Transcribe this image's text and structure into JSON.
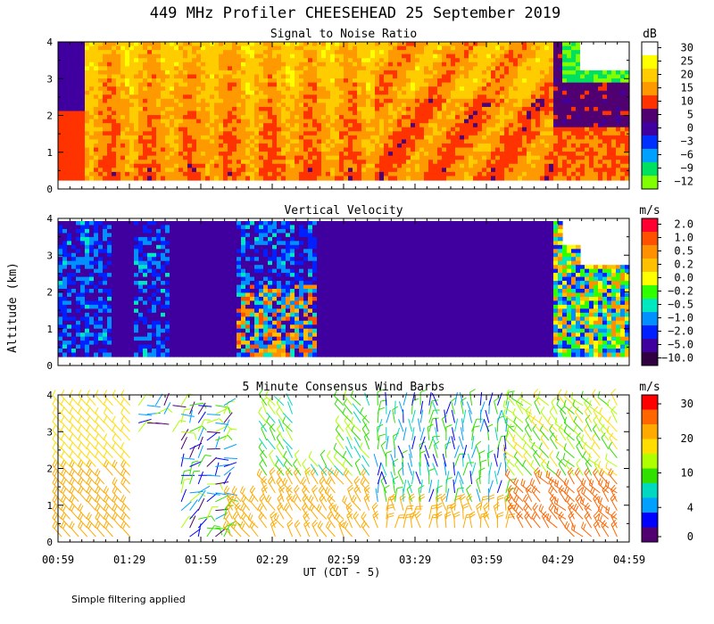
{
  "title": "449 MHz Profiler CHEESEHEAD 25 September 2019",
  "footer_note": "Simple filtering applied",
  "x_axis": {
    "label": "UT (CDT - 5)",
    "ticks": [
      "00:59",
      "01:29",
      "01:59",
      "02:29",
      "02:59",
      "03:29",
      "03:59",
      "04:29",
      "04:59"
    ]
  },
  "y_axis": {
    "label": "Altitude (km)",
    "ticks": [
      "0",
      "1",
      "2",
      "3",
      "4"
    ]
  },
  "chart_data": [
    {
      "type": "heatmap",
      "title": "Signal to Noise Ratio",
      "unit": "dB",
      "ylim": [
        0,
        4
      ],
      "colorbar_ticks": [
        "30",
        "25",
        "20",
        "15",
        "10",
        "5",
        "0",
        "−3",
        "−6",
        "−9",
        "−12"
      ],
      "colors": [
        "#ffffff",
        "#ffff00",
        "#ffcc00",
        "#ff9900",
        "#ff3300",
        "#500070",
        "#4000a0",
        "#0030ff",
        "#00a0ff",
        "#00e060",
        "#80ff00"
      ]
    },
    {
      "type": "heatmap",
      "title": "Vertical Velocity",
      "unit": "m/s",
      "ylim": [
        0,
        4
      ],
      "colorbar_ticks": [
        "2.0",
        "1.0",
        "0.5",
        "0.2",
        "0.0",
        "−0.2",
        "−0.5",
        "−1.0",
        "−2.0",
        "−5.0",
        "−10.0"
      ],
      "colors": [
        "#ff0030",
        "#ff5000",
        "#ff9000",
        "#ffc000",
        "#ffff00",
        "#30ff00",
        "#00e8c0",
        "#0090ff",
        "#0020ff",
        "#4000a0",
        "#300040"
      ]
    },
    {
      "type": "scatter",
      "title": "5 Minute Consensus Wind Barbs",
      "unit": "m/s",
      "ylim": [
        0,
        4
      ],
      "colorbar_ticks": [
        "30",
        "20",
        "10",
        "4",
        "0"
      ],
      "colors": [
        "#ff0000",
        "#ff6600",
        "#ffaa00",
        "#ffdd00",
        "#b0ff00",
        "#30e000",
        "#00d8c0",
        "#00a0ff",
        "#0000ff",
        "#500070"
      ]
    }
  ]
}
